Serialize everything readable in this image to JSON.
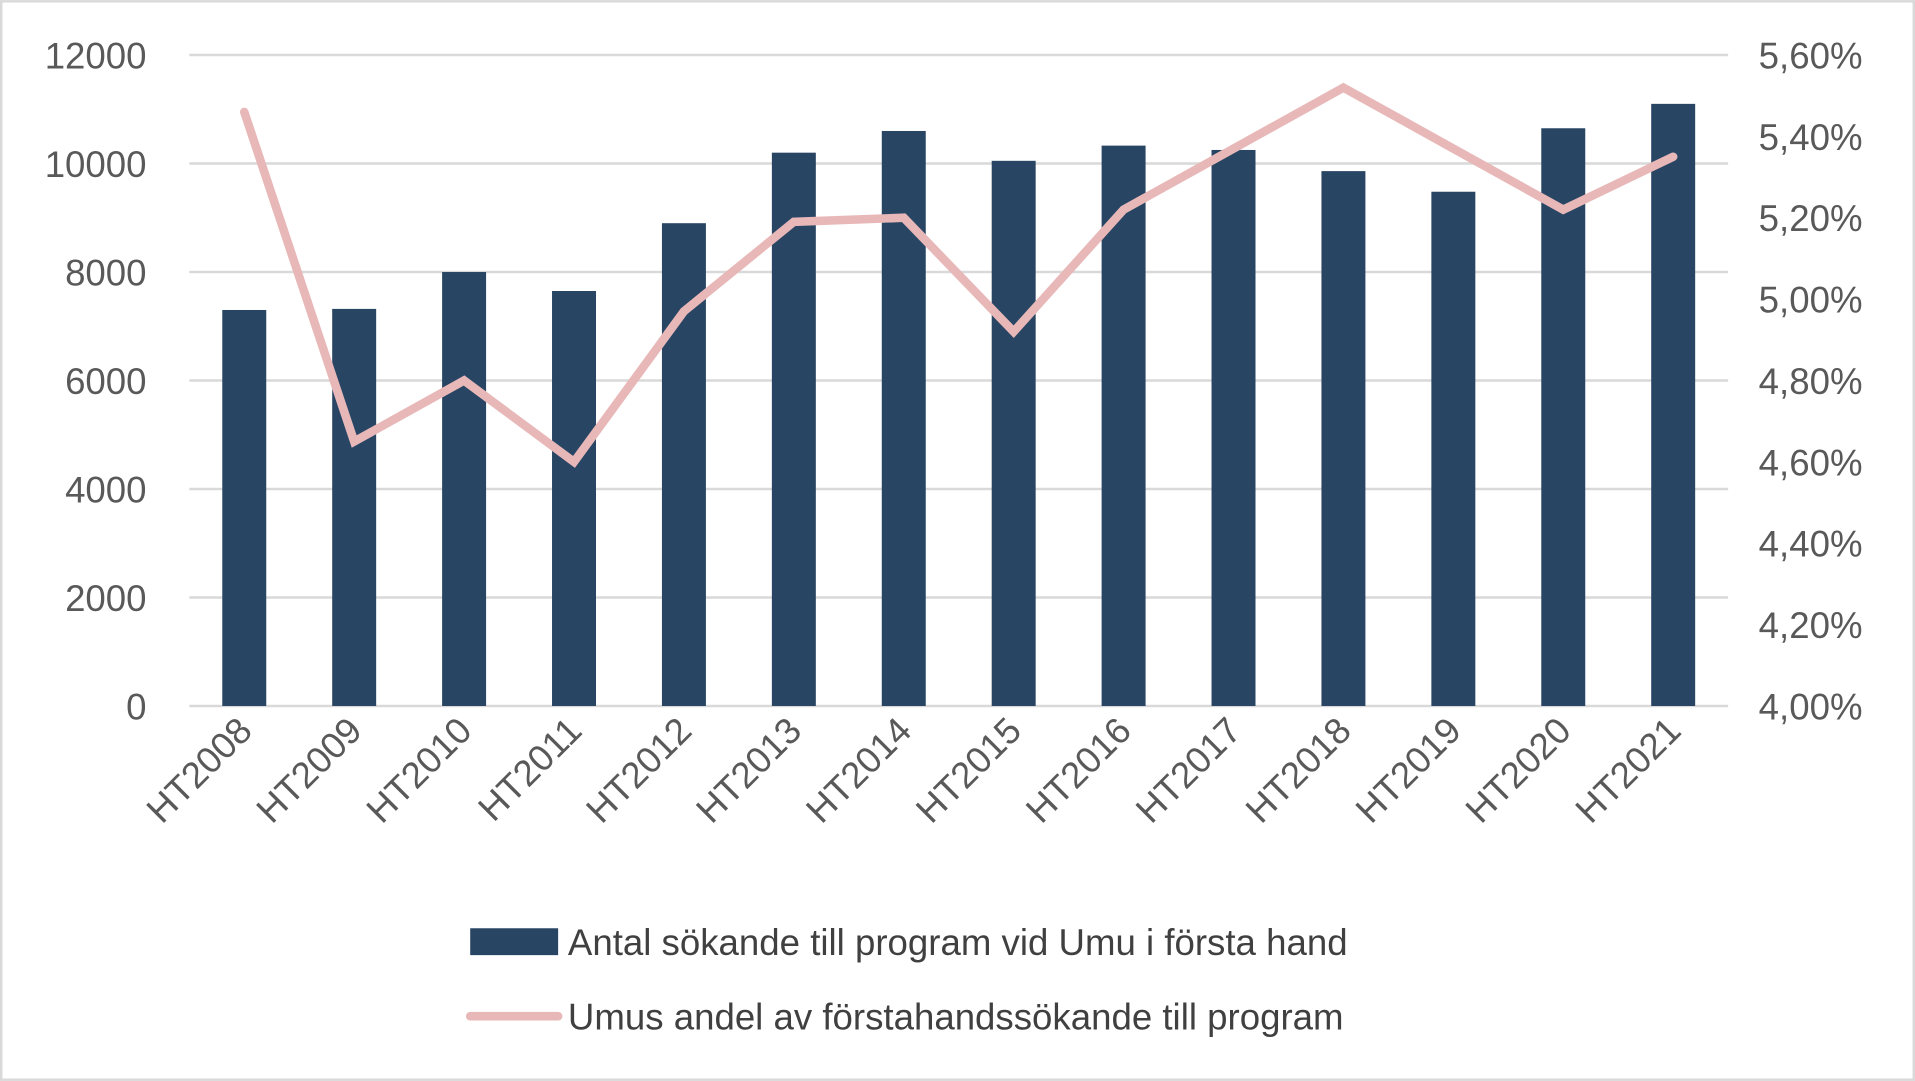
{
  "chart_data": {
    "type": "bar+line",
    "categories": [
      "HT2008",
      "HT2009",
      "HT2010",
      "HT2011",
      "HT2012",
      "HT2013",
      "HT2014",
      "HT2015",
      "HT2016",
      "HT2017",
      "HT2018",
      "HT2019",
      "HT2020",
      "HT2021"
    ],
    "series": [
      {
        "name": "Antal sökande till program vid Umu i första hand",
        "type": "bar",
        "axis": "left",
        "color": "#284563",
        "values": [
          7300,
          7320,
          8000,
          7650,
          8900,
          10200,
          10600,
          10050,
          10330,
          10250,
          9860,
          9480,
          10650,
          11100
        ]
      },
      {
        "name": "Umus andel av förstahandssökande till program",
        "type": "line",
        "axis": "right",
        "color": "#e8b8b8",
        "values": [
          5.46,
          4.65,
          4.8,
          4.6,
          4.97,
          5.19,
          5.2,
          4.92,
          5.22,
          5.37,
          5.52,
          5.37,
          5.22,
          5.35
        ]
      }
    ],
    "y_left": {
      "ylim": [
        0,
        12000
      ],
      "ticks": [
        "0",
        "2000",
        "4000",
        "6000",
        "8000",
        "10000",
        "12000"
      ]
    },
    "y_right": {
      "ylim": [
        4.0,
        5.6
      ],
      "ticks": [
        "4,00%",
        "4,20%",
        "4,40%",
        "4,60%",
        "4,80%",
        "5,00%",
        "5,20%",
        "5,40%",
        "5,60%"
      ]
    },
    "grid": true,
    "gridline_color": "#d9d9d9",
    "legend_placement": "bottom"
  }
}
